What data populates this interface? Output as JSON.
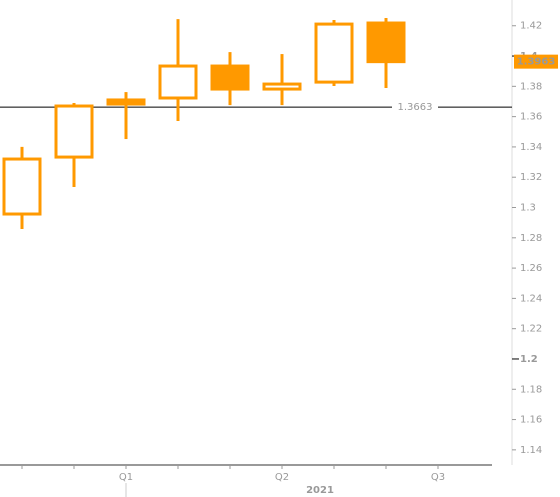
{
  "chart_data": {
    "type": "candlestick",
    "categories": [
      null,
      null,
      "Q1",
      null,
      null,
      "Q2",
      null,
      null,
      "Q3"
    ],
    "x_period_label": "2021",
    "series": [
      {
        "color": "#ff9900",
        "open": [
          1.2957,
          1.3333,
          1.371,
          1.3723,
          1.3934,
          1.3782,
          1.3828,
          1.4218,
          null
        ],
        "high": [
          1.34,
          1.369,
          1.3762,
          1.4244,
          1.4026,
          1.4013,
          1.4238,
          1.4251,
          null
        ],
        "low": [
          1.2858,
          1.3135,
          1.3452,
          1.3571,
          1.3676,
          1.3676,
          1.3802,
          1.3789,
          null
        ],
        "close": [
          1.332,
          1.367,
          1.3683,
          1.3934,
          1.3782,
          1.3815,
          1.4211,
          1.3963,
          null
        ]
      }
    ],
    "ylim": [
      1.13,
      1.437
    ],
    "yticks": [
      1.14,
      1.16,
      1.18,
      1.2,
      1.22,
      1.24,
      1.26,
      1.28,
      1.3,
      1.32,
      1.34,
      1.36,
      1.38,
      1.4,
      1.42
    ],
    "major_yticks": [
      1.2,
      1.4
    ],
    "reference_line": 1.3663,
    "last_price": 1.3963
  }
}
